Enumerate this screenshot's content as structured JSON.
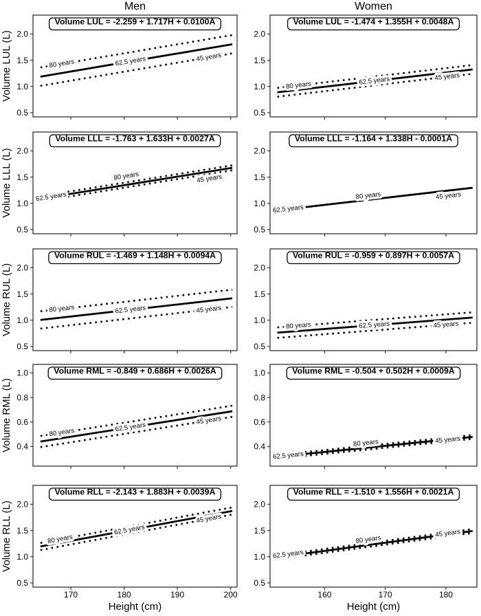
{
  "page": {
    "background": "#ffffff",
    "foreground": "#000000",
    "panel_border_color": "#333333"
  },
  "chart_data": {
    "type": "line",
    "title_left_column": "Men",
    "title_right_column": "Women",
    "line_styles": {
      "solid_age": 62.5,
      "dotted_ages": [
        45,
        80
      ]
    },
    "columns": [
      {
        "title": "Men",
        "xlabel": "Height (cm)",
        "xticks": [
          170,
          180,
          190,
          200
        ],
        "xlim": [
          162.9,
          201.2
        ],
        "line_height_range": [
          164.3,
          200.3
        ]
      },
      {
        "title": "Women",
        "xlabel": "Height (cm)",
        "xticks": [
          160,
          170,
          180
        ],
        "xlim": [
          151.0,
          185.1
        ],
        "line_height_range": [
          152.2,
          184.4
        ]
      }
    ],
    "rows": [
      {
        "yticks": [
          0.5,
          1.0,
          1.5,
          2.0
        ],
        "ylim": [
          0.42,
          2.36
        ]
      },
      {
        "yticks": [
          0.5,
          1.0,
          1.5,
          2.0
        ],
        "ylim": [
          0.42,
          2.36
        ]
      },
      {
        "yticks": [
          0.5,
          1.0,
          1.5,
          2.0
        ],
        "ylim": [
          0.42,
          2.36
        ]
      },
      {
        "yticks": [
          0.4,
          0.6,
          0.8,
          1.0
        ],
        "ylim": [
          0.24,
          1.07
        ]
      },
      {
        "yticks": [
          0.5,
          1.0,
          1.5,
          2.0
        ],
        "ylim": [
          0.42,
          2.36
        ]
      }
    ],
    "ages_plotted": [
      45,
      62.5,
      80
    ],
    "panels": [
      {
        "row": 0,
        "col": 0,
        "lobe": "LUL",
        "sex": "Men",
        "ylabel": "Volume LUL (L)",
        "equation_label": "Volume LUL = -2.259 + 1.717H + 0.0100A",
        "coef": {
          "intercept": -2.259,
          "height_m": 1.717,
          "age": 0.01
        },
        "age_labels": [
          {
            "text": "80 years",
            "age": 80,
            "height_cm": 168.3,
            "dy": 0
          },
          {
            "text": "62.5 years",
            "age": 62.5,
            "height_cm": 181.2,
            "dy": 0
          },
          {
            "text": "45 years",
            "age": 45,
            "height_cm": 195.9,
            "dy": 0
          }
        ]
      },
      {
        "row": 0,
        "col": 1,
        "lobe": "LUL",
        "sex": "Women",
        "ylabel": "",
        "equation_label": "Volume LUL = -1.474 + 1.355H + 0.0048A",
        "coef": {
          "intercept": -1.474,
          "height_m": 1.355,
          "age": 0.0048
        },
        "age_labels": [
          {
            "text": "80 years",
            "age": 80,
            "height_cm": 155.7,
            "dy": 0
          },
          {
            "text": "62.5 years",
            "age": 62.5,
            "height_cm": 168.2,
            "dy": 0
          },
          {
            "text": "45 years",
            "age": 45,
            "height_cm": 180.2,
            "dy": 0
          }
        ]
      },
      {
        "row": 1,
        "col": 0,
        "lobe": "LLL",
        "sex": "Men",
        "ylabel": "Volume LLL (L)",
        "equation_label": "Volume LLL = -1.763 + 1.633H + 0.0027A",
        "coef": {
          "intercept": -1.763,
          "height_m": 1.633,
          "age": 0.0027
        },
        "age_labels": [
          {
            "text": "62.5 years",
            "age": 62.5,
            "height_cm": 166.3,
            "dy": 0
          },
          {
            "text": "80 years",
            "age": 80,
            "height_cm": 180.4,
            "dy": -9
          },
          {
            "text": "45 years",
            "age": 45,
            "height_cm": 196.0,
            "dy": 7
          }
        ]
      },
      {
        "row": 1,
        "col": 1,
        "lobe": "LLL",
        "sex": "Women",
        "ylabel": "",
        "equation_label": "Volume LLL = -1.164 + 1.338H - 0.0001A",
        "coef": {
          "intercept": -1.164,
          "height_m": 1.338,
          "age": -0.0001
        },
        "age_labels": [
          {
            "text": "62.5 years",
            "age": 62.5,
            "height_cm": 154.0,
            "dy": 0
          },
          {
            "text": "80 years",
            "age": 80,
            "height_cm": 167.2,
            "dy": -6
          },
          {
            "text": "45 years",
            "age": 45,
            "height_cm": 180.4,
            "dy": 8
          }
        ]
      },
      {
        "row": 2,
        "col": 0,
        "lobe": "RUL",
        "sex": "Men",
        "ylabel": "Volume RUL (L)",
        "equation_label": "Volume RUL = -1.469 + 1.148H + 0.0094A",
        "coef": {
          "intercept": -1.469,
          "height_m": 1.148,
          "age": 0.0094
        },
        "age_labels": [
          {
            "text": "80 years",
            "age": 80,
            "height_cm": 168.3,
            "dy": 0
          },
          {
            "text": "62.5 years",
            "age": 62.5,
            "height_cm": 181.2,
            "dy": 0
          },
          {
            "text": "45 years",
            "age": 45,
            "height_cm": 195.9,
            "dy": 0
          }
        ]
      },
      {
        "row": 2,
        "col": 1,
        "lobe": "RUL",
        "sex": "Women",
        "ylabel": "",
        "equation_label": "Volume RUL = -0.959 + 0.897H + 0.0057A",
        "coef": {
          "intercept": -0.959,
          "height_m": 0.897,
          "age": 0.0057
        },
        "age_labels": [
          {
            "text": "80 years",
            "age": 80,
            "height_cm": 155.7,
            "dy": 0
          },
          {
            "text": "62.5 years",
            "age": 62.5,
            "height_cm": 168.2,
            "dy": 0
          },
          {
            "text": "45 years",
            "age": 45,
            "height_cm": 180.0,
            "dy": 0
          }
        ]
      },
      {
        "row": 3,
        "col": 0,
        "lobe": "RML",
        "sex": "Men",
        "ylabel": "Volume RML (L)",
        "equation_label": "Volume RML = -0.849 + 0.686H + 0.0026A",
        "coef": {
          "intercept": -0.849,
          "height_m": 0.686,
          "age": 0.0026
        },
        "age_labels": [
          {
            "text": "80 years",
            "age": 80,
            "height_cm": 168.3,
            "dy": 0
          },
          {
            "text": "62.5 years",
            "age": 62.5,
            "height_cm": 181.2,
            "dy": 0
          },
          {
            "text": "45 years",
            "age": 45,
            "height_cm": 195.9,
            "dy": 0
          }
        ]
      },
      {
        "row": 3,
        "col": 1,
        "lobe": "RML",
        "sex": "Women",
        "ylabel": "",
        "equation_label": "Volume RML = -0.504 + 0.502H + 0.0009A",
        "coef": {
          "intercept": -0.504,
          "height_m": 0.502,
          "age": 0.0009
        },
        "age_labels": [
          {
            "text": "62.5 years",
            "age": 62.5,
            "height_cm": 154.0,
            "dy": 0
          },
          {
            "text": "80 years",
            "age": 80,
            "height_cm": 166.8,
            "dy": -4
          },
          {
            "text": "45 years",
            "age": 45,
            "height_cm": 180.3,
            "dy": -2
          }
        ]
      },
      {
        "row": 4,
        "col": 0,
        "lobe": "RLL",
        "sex": "Men",
        "ylabel": "Volume RLL (L)",
        "equation_label": "Volume RLL = -2.143 + 1.883H + 0.0039A",
        "coef": {
          "intercept": -2.143,
          "height_m": 1.883,
          "age": 0.0039
        },
        "age_labels": [
          {
            "text": "80 years",
            "age": 80,
            "height_cm": 168.0,
            "dy": 0
          },
          {
            "text": "62.5 years",
            "age": 62.5,
            "height_cm": 181.0,
            "dy": 0
          },
          {
            "text": "45 years",
            "age": 45,
            "height_cm": 195.9,
            "dy": 0
          }
        ]
      },
      {
        "row": 4,
        "col": 1,
        "lobe": "RLL",
        "sex": "Women",
        "ylabel": "",
        "equation_label": "Volume RLL = -1.510 + 1.556H + 0.0021A",
        "coef": {
          "intercept": -1.51,
          "height_m": 1.556,
          "age": 0.0021
        },
        "age_labels": [
          {
            "text": "62.5 years",
            "age": 62.5,
            "height_cm": 154.0,
            "dy": -2
          },
          {
            "text": "80 years",
            "age": 80,
            "height_cm": 167.2,
            "dy": -5
          },
          {
            "text": "45 years",
            "age": 45,
            "height_cm": 180.3,
            "dy": -4
          }
        ]
      }
    ]
  }
}
